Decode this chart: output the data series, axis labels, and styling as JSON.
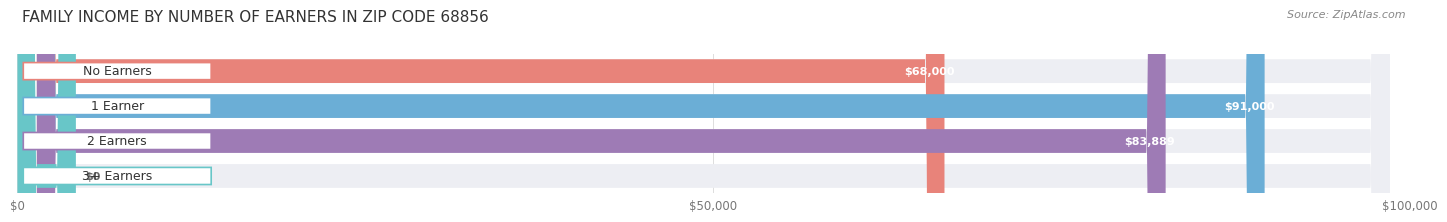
{
  "title": "FAMILY INCOME BY NUMBER OF EARNERS IN ZIP CODE 68856",
  "source": "Source: ZipAtlas.com",
  "categories": [
    "No Earners",
    "1 Earner",
    "2 Earners",
    "3+ Earners"
  ],
  "values": [
    68000,
    91000,
    83889,
    0
  ],
  "value_labels": [
    "$68,000",
    "$91,000",
    "$83,889",
    "$0"
  ],
  "bar_colors": [
    "#E8837A",
    "#6BAED6",
    "#9E7BB5",
    "#68C6C8"
  ],
  "bar_bg_color": "#EDEEF3",
  "xlim": [
    0,
    100000
  ],
  "xticks": [
    0,
    50000,
    100000
  ],
  "xtick_labels": [
    "$0",
    "$50,000",
    "$100,000"
  ],
  "title_fontsize": 11,
  "source_fontsize": 8,
  "cat_label_fontsize": 9,
  "value_label_fontsize": 8,
  "background_color": "#FFFFFF"
}
